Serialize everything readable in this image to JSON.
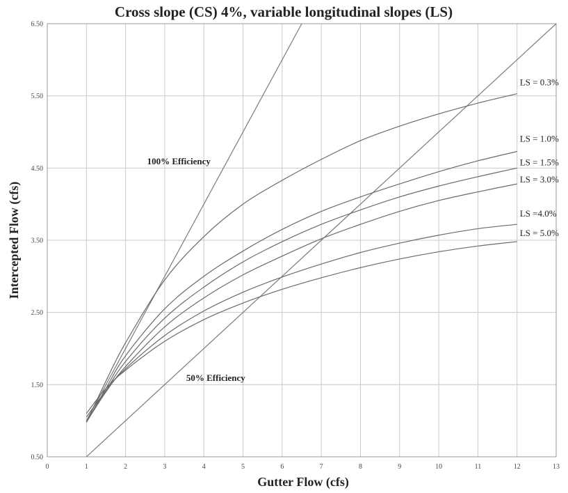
{
  "chart_data": {
    "type": "line",
    "title": "Cross slope (CS) 4%, variable longitudinal slopes (LS)",
    "xlabel": "Gutter Flow (cfs)",
    "ylabel": "Intercepted Flow (cfs)",
    "xlim": [
      0,
      13
    ],
    "ylim": [
      0.5,
      6.5
    ],
    "x_ticks": [
      "0",
      "1",
      "2",
      "3",
      "4",
      "5",
      "6",
      "7",
      "8",
      "9",
      "10",
      "11",
      "12",
      "13"
    ],
    "y_ticks": [
      "0.50",
      "1.50",
      "2.50",
      "3.50",
      "4.50",
      "5.50",
      "6.50"
    ],
    "grid": true,
    "x": [
      1,
      1.5,
      2,
      3,
      4,
      5,
      6,
      7,
      8,
      9,
      10,
      11,
      12
    ],
    "series": [
      {
        "name": "LS = 0.3%",
        "values": [
          0.98,
          1.55,
          2.08,
          2.95,
          3.55,
          4.0,
          4.33,
          4.62,
          4.88,
          5.08,
          5.25,
          5.4,
          5.53
        ]
      },
      {
        "name": "LS = 1.0%",
        "values": [
          0.98,
          1.45,
          1.9,
          2.55,
          3.0,
          3.35,
          3.65,
          3.9,
          4.1,
          4.28,
          4.45,
          4.6,
          4.73
        ]
      },
      {
        "name": "LS = 1.5%",
        "values": [
          0.98,
          1.42,
          1.82,
          2.42,
          2.85,
          3.2,
          3.48,
          3.72,
          3.92,
          4.1,
          4.25,
          4.38,
          4.5
        ]
      },
      {
        "name": "LS = 3.0%",
        "values": [
          0.98,
          1.4,
          1.75,
          2.3,
          2.7,
          3.02,
          3.28,
          3.52,
          3.72,
          3.9,
          4.05,
          4.17,
          4.28
        ]
      },
      {
        "name": "LS =4.0%",
        "values": [
          1.05,
          1.42,
          1.72,
          2.18,
          2.52,
          2.78,
          2.99,
          3.17,
          3.33,
          3.46,
          3.57,
          3.66,
          3.72
        ]
      },
      {
        "name": "LS = 5.0%",
        "values": [
          1.1,
          1.45,
          1.7,
          2.1,
          2.4,
          2.63,
          2.82,
          2.98,
          3.12,
          3.24,
          3.34,
          3.42,
          3.48
        ]
      }
    ],
    "reference_lines": [
      {
        "label": "100% Efficiency",
        "x": [
          1,
          6.5
        ],
        "y": [
          1.0,
          6.5
        ]
      },
      {
        "label": "50% Efficiency",
        "x": [
          1,
          13
        ],
        "y": [
          0.5,
          6.5
        ]
      }
    ]
  }
}
